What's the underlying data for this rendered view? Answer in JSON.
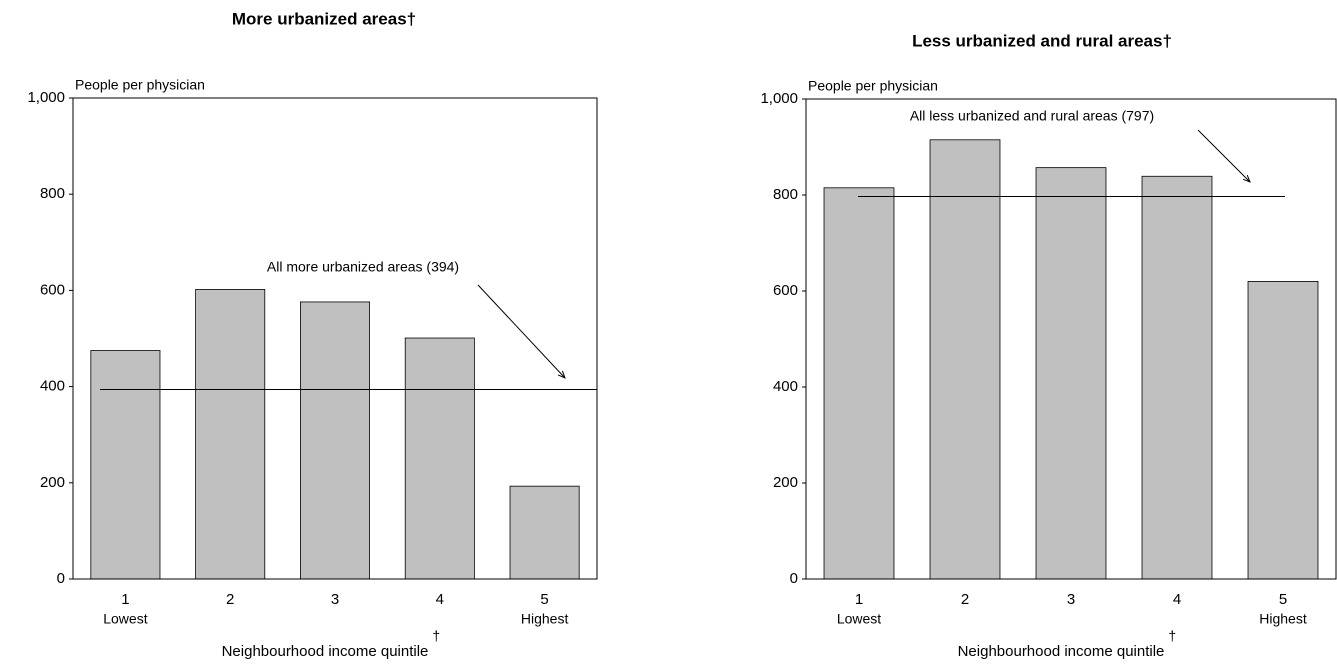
{
  "chart_data": [
    {
      "type": "bar",
      "title": "More urbanized areas†",
      "ylabel": "People per physician",
      "xlabel": "Neighbourhood income quintile",
      "xlabel_note": "†",
      "categories": [
        "1",
        "2",
        "3",
        "4",
        "5"
      ],
      "category_sublabels": [
        "Lowest",
        null,
        null,
        null,
        "Highest"
      ],
      "values": [
        475,
        602,
        576,
        501,
        193
      ],
      "color": "#c0c0c0",
      "grid": false,
      "ylim": [
        0,
        1000
      ],
      "yticks": [
        0,
        200,
        400,
        600,
        800,
        {
          "value": 1000,
          "label": "1,000"
        }
      ],
      "reference_line": {
        "value": 394,
        "label": "All more urbanized areas (394)"
      }
    },
    {
      "type": "bar",
      "title": "Less urbanized and rural areas†",
      "ylabel": "People per physician",
      "xlabel": "Neighbourhood income quintile",
      "xlabel_note": "†",
      "categories": [
        "1",
        "2",
        "3",
        "4",
        "5"
      ],
      "category_sublabels": [
        "Lowest",
        null,
        null,
        null,
        "Highest"
      ],
      "values": [
        815,
        915,
        857,
        839,
        620
      ],
      "color": "#c0c0c0",
      "grid": false,
      "ylim": [
        0,
        1000
      ],
      "yticks": [
        0,
        200,
        400,
        600,
        800,
        {
          "value": 1000,
          "label": "1,000"
        }
      ],
      "reference_line": {
        "value": 797,
        "label": "All less urbanized and rural areas (797)"
      }
    }
  ]
}
